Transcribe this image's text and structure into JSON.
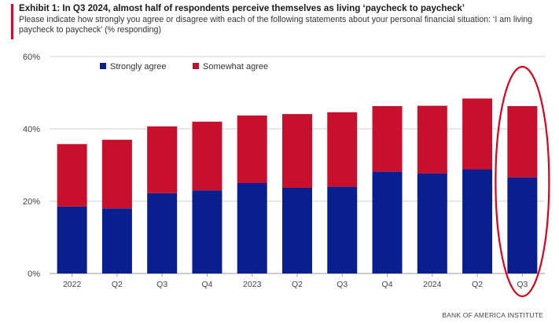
{
  "header": {
    "title": "Exhibit 1: In Q3 2024, almost half of respondents perceive themselves as living ‘paycheck to paycheck’",
    "subtitle": "Please indicate how strongly you agree or disagree with each of the following statements about your personal financial situation: ‘I am living paycheck to paycheck’ (% responding)"
  },
  "footer": {
    "source": "BANK OF AMERICA INSTITUTE"
  },
  "colors": {
    "strongly": "#0a1f8f",
    "somewhat": "#c8102e",
    "highlight": "#e0001b",
    "grid": "#d0d0d0"
  },
  "chart_data": {
    "type": "bar",
    "stacked": true,
    "categories": [
      "2022",
      "Q2",
      "Q3",
      "Q4",
      "2023",
      "Q2",
      "Q3",
      "Q4",
      "2024",
      "Q2",
      "Q3"
    ],
    "series": [
      {
        "name": "Strongly agree",
        "values": [
          18.5,
          18.0,
          22.2,
          23.0,
          25.0,
          23.7,
          24.0,
          28.2,
          27.7,
          28.8,
          26.6
        ]
      },
      {
        "name": "Somewhat agree",
        "values": [
          17.3,
          19.0,
          18.5,
          19.0,
          18.7,
          20.4,
          20.6,
          18.1,
          18.7,
          19.6,
          19.7
        ]
      }
    ],
    "ylim": [
      0,
      60
    ],
    "yticks": [
      "0%",
      "20%",
      "40%",
      "60%"
    ],
    "ytick_values": [
      0,
      20,
      40,
      60
    ],
    "grid": true,
    "legend_position": "top-left",
    "highlighted_category_index": 10
  }
}
